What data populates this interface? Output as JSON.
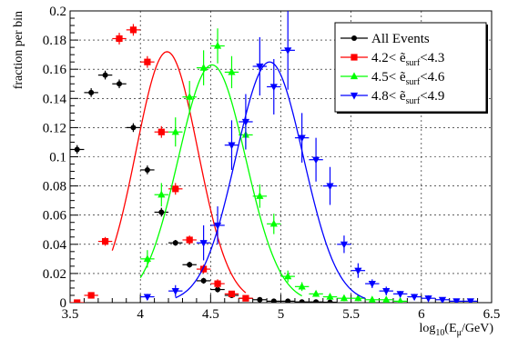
{
  "chart_data": {
    "type": "scatter",
    "title": "",
    "xlabel": "log10(Eμ/GeV)",
    "ylabel": "fraction per bin",
    "xlim": [
      3.5,
      6.5
    ],
    "ylim": [
      0,
      0.2
    ],
    "x_ticks": [
      "3.5",
      "4",
      "4.5",
      "5",
      "5.5",
      "6",
      "6.5"
    ],
    "y_ticks": [
      "0",
      "0.02",
      "0.04",
      "0.06",
      "0.08",
      "0.1",
      "0.12",
      "0.14",
      "0.16",
      "0.18",
      "0.2"
    ],
    "grid": true,
    "legend_position": "top-right",
    "series": [
      {
        "name": "All Events",
        "color": "#000000",
        "marker": "circle",
        "points": [
          {
            "x": 3.55,
            "y": 0.105,
            "ey": 0.003
          },
          {
            "x": 3.65,
            "y": 0.144,
            "ey": 0.003
          },
          {
            "x": 3.75,
            "y": 0.156,
            "ey": 0.003
          },
          {
            "x": 3.85,
            "y": 0.15,
            "ey": 0.003
          },
          {
            "x": 3.95,
            "y": 0.12,
            "ey": 0.003
          },
          {
            "x": 4.05,
            "y": 0.091,
            "ey": 0.003
          },
          {
            "x": 4.15,
            "y": 0.062,
            "ey": 0.003
          },
          {
            "x": 4.25,
            "y": 0.041,
            "ey": 0.002
          },
          {
            "x": 4.35,
            "y": 0.026,
            "ey": 0.002
          },
          {
            "x": 4.45,
            "y": 0.015,
            "ey": 0.002
          },
          {
            "x": 4.55,
            "y": 0.009,
            "ey": 0.002
          },
          {
            "x": 4.65,
            "y": 0.005,
            "ey": 0.001
          },
          {
            "x": 4.75,
            "y": 0.003,
            "ey": 0.001
          },
          {
            "x": 4.85,
            "y": 0.002,
            "ey": 0.001
          },
          {
            "x": 4.95,
            "y": 0.001,
            "ey": 0.001
          },
          {
            "x": 5.05,
            "y": 0.001,
            "ey": 0.001
          },
          {
            "x": 5.15,
            "y": 0.0005,
            "ey": 0.0005
          },
          {
            "x": 5.25,
            "y": 0.0005,
            "ey": 0.0005
          },
          {
            "x": 5.35,
            "y": 0.0003,
            "ey": 0.0003
          }
        ]
      },
      {
        "name": "4.2< ẽsurf<4.3",
        "color": "#ff0000",
        "marker": "square",
        "fit_curve": {
          "mean": 4.19,
          "sigma": 0.22,
          "amplitude": 0.172,
          "from": 3.8,
          "to": 4.75
        },
        "points": [
          {
            "x": 3.55,
            "y": 0.0,
            "ey": 0.001
          },
          {
            "x": 3.65,
            "y": 0.005,
            "ey": 0.002
          },
          {
            "x": 3.75,
            "y": 0.042,
            "ey": 0.003
          },
          {
            "x": 3.85,
            "y": 0.181,
            "ey": 0.004
          },
          {
            "x": 3.95,
            "y": 0.187,
            "ey": 0.004
          },
          {
            "x": 4.05,
            "y": 0.165,
            "ey": 0.004
          },
          {
            "x": 4.15,
            "y": 0.117,
            "ey": 0.004
          },
          {
            "x": 4.25,
            "y": 0.078,
            "ey": 0.004
          },
          {
            "x": 4.35,
            "y": 0.043,
            "ey": 0.003
          },
          {
            "x": 4.45,
            "y": 0.023,
            "ey": 0.003
          },
          {
            "x": 4.55,
            "y": 0.013,
            "ey": 0.003
          },
          {
            "x": 4.65,
            "y": 0.006,
            "ey": 0.002
          },
          {
            "x": 4.75,
            "y": 0.003,
            "ey": 0.002
          }
        ]
      },
      {
        "name": "4.5< ẽsurf<4.6",
        "color": "#00ff00",
        "marker": "triangle-up",
        "fit_curve": {
          "mean": 4.51,
          "sigma": 0.24,
          "amplitude": 0.163,
          "from": 4.0,
          "to": 5.15
        },
        "points": [
          {
            "x": 4.05,
            "y": 0.03,
            "ey": 0.006
          },
          {
            "x": 4.15,
            "y": 0.074,
            "ey": 0.008
          },
          {
            "x": 4.25,
            "y": 0.117,
            "ey": 0.01
          },
          {
            "x": 4.35,
            "y": 0.141,
            "ey": 0.011
          },
          {
            "x": 4.45,
            "y": 0.161,
            "ey": 0.012
          },
          {
            "x": 4.55,
            "y": 0.176,
            "ey": 0.012
          },
          {
            "x": 4.65,
            "y": 0.158,
            "ey": 0.011
          },
          {
            "x": 4.75,
            "y": 0.115,
            "ey": 0.01
          },
          {
            "x": 4.85,
            "y": 0.073,
            "ey": 0.008
          },
          {
            "x": 4.95,
            "y": 0.054,
            "ey": 0.007
          },
          {
            "x": 5.05,
            "y": 0.018,
            "ey": 0.004
          },
          {
            "x": 5.15,
            "y": 0.011,
            "ey": 0.003
          },
          {
            "x": 5.25,
            "y": 0.006,
            "ey": 0.002
          },
          {
            "x": 5.35,
            "y": 0.004,
            "ey": 0.002
          },
          {
            "x": 5.45,
            "y": 0.003,
            "ey": 0.002
          },
          {
            "x": 5.55,
            "y": 0.003,
            "ey": 0.002
          },
          {
            "x": 5.65,
            "y": 0.002,
            "ey": 0.001
          },
          {
            "x": 5.75,
            "y": 0.002,
            "ey": 0.001
          },
          {
            "x": 5.85,
            "y": 0.001,
            "ey": 0.001
          }
        ]
      },
      {
        "name": "4.8< ẽsurf<4.9",
        "color": "#0000ff",
        "marker": "triangle-down",
        "fit_curve": {
          "mean": 4.92,
          "sigma": 0.24,
          "amplitude": 0.165,
          "from": 4.25,
          "to": 5.6
        },
        "points": [
          {
            "x": 4.05,
            "y": 0.004,
            "ey": 0.002
          },
          {
            "x": 4.25,
            "y": 0.008,
            "ey": 0.004
          },
          {
            "x": 4.45,
            "y": 0.041,
            "ey": 0.012
          },
          {
            "x": 4.55,
            "y": 0.053,
            "ey": 0.013
          },
          {
            "x": 4.65,
            "y": 0.108,
            "ey": 0.017
          },
          {
            "x": 4.75,
            "y": 0.124,
            "ey": 0.019
          },
          {
            "x": 4.85,
            "y": 0.162,
            "ey": 0.02
          },
          {
            "x": 4.95,
            "y": 0.148,
            "ey": 0.019
          },
          {
            "x": 5.05,
            "y": 0.173,
            "ey": 0.027
          },
          {
            "x": 5.15,
            "y": 0.113,
            "ey": 0.017
          },
          {
            "x": 5.25,
            "y": 0.098,
            "ey": 0.015
          },
          {
            "x": 5.35,
            "y": 0.08,
            "ey": 0.013
          },
          {
            "x": 5.45,
            "y": 0.04,
            "ey": 0.006
          },
          {
            "x": 5.55,
            "y": 0.022,
            "ey": 0.005
          },
          {
            "x": 5.65,
            "y": 0.013,
            "ey": 0.003
          },
          {
            "x": 5.75,
            "y": 0.008,
            "ey": 0.003
          },
          {
            "x": 5.85,
            "y": 0.006,
            "ey": 0.002
          },
          {
            "x": 5.95,
            "y": 0.004,
            "ey": 0.002
          },
          {
            "x": 6.05,
            "y": 0.003,
            "ey": 0.002
          },
          {
            "x": 6.15,
            "y": 0.002,
            "ey": 0.001
          },
          {
            "x": 6.25,
            "y": 0.001,
            "ey": 0.001
          },
          {
            "x": 6.35,
            "y": 0.001,
            "ey": 0.001
          }
        ]
      }
    ]
  }
}
